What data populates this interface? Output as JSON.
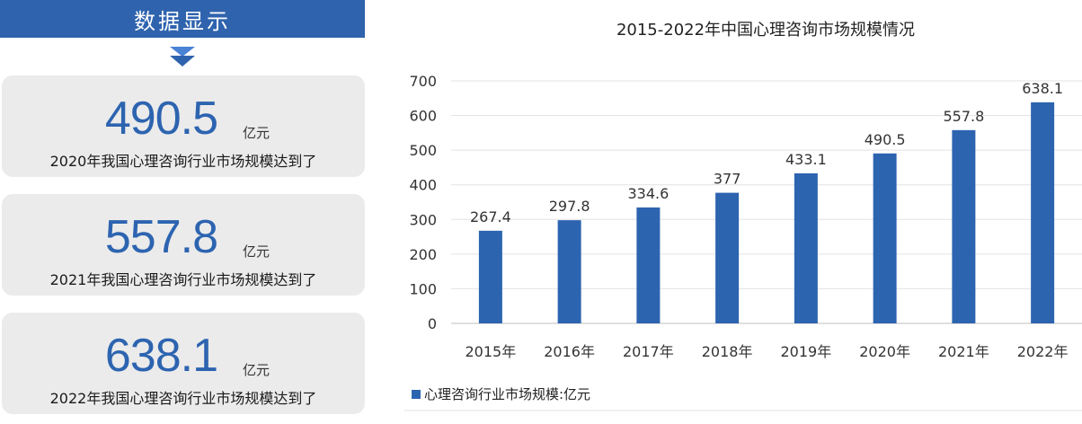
{
  "panel": {
    "banner_title": "数据显示",
    "cards": [
      {
        "value": "490.5",
        "unit": "亿元",
        "desc": "2020年我国心理咨询行业市场规模达到了"
      },
      {
        "value": "557.8",
        "unit": "亿元",
        "desc": "2021年我国心理咨询行业市场规模达到了"
      },
      {
        "value": "638.1",
        "unit": "亿元",
        "desc": "2022年我国心理咨询行业市场规模达到了"
      }
    ]
  },
  "colors": {
    "accent": "#2f63ae",
    "bar": "#2d64b0",
    "card_bg": "#ebebeb"
  },
  "chart_data": {
    "type": "bar",
    "title": "2015-2022年中国心理咨询市场规模情况",
    "categories": [
      "2015年",
      "2016年",
      "2017年",
      "2018年",
      "2019年",
      "2020年",
      "2021年",
      "2022年"
    ],
    "series": [
      {
        "name": "心理咨询行业市场规模:亿元",
        "values": [
          267.4,
          297.8,
          334.6,
          377,
          433.1,
          490.5,
          557.8,
          638.1
        ]
      }
    ],
    "data_labels": [
      "267.4",
      "297.8",
      "334.6",
      "377",
      "433.1",
      "490.5",
      "557.8",
      "638.1"
    ],
    "ylim": [
      0,
      700
    ],
    "yticks": [
      0,
      100,
      200,
      300,
      400,
      500,
      600,
      700
    ],
    "grid": true,
    "legend": "bottom-left"
  }
}
